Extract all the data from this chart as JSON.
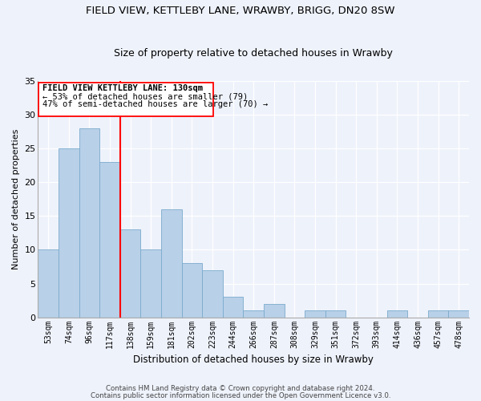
{
  "title": "FIELD VIEW, KETTLEBY LANE, WRAWBY, BRIGG, DN20 8SW",
  "subtitle": "Size of property relative to detached houses in Wrawby",
  "xlabel": "Distribution of detached houses by size in Wrawby",
  "ylabel": "Number of detached properties",
  "bar_labels": [
    "53sqm",
    "74sqm",
    "96sqm",
    "117sqm",
    "138sqm",
    "159sqm",
    "181sqm",
    "202sqm",
    "223sqm",
    "244sqm",
    "266sqm",
    "287sqm",
    "308sqm",
    "329sqm",
    "351sqm",
    "372sqm",
    "393sqm",
    "414sqm",
    "436sqm",
    "457sqm",
    "478sqm"
  ],
  "bar_values": [
    10,
    25,
    28,
    23,
    13,
    10,
    16,
    8,
    7,
    3,
    1,
    2,
    0,
    1,
    1,
    0,
    0,
    1,
    0,
    1,
    1
  ],
  "bar_color": "#b8d0e8",
  "bar_edge_color": "#7aabcc",
  "red_line_index": 3.5,
  "ylim": [
    0,
    35
  ],
  "yticks": [
    0,
    5,
    10,
    15,
    20,
    25,
    30,
    35
  ],
  "annotation_title": "FIELD VIEW KETTLEBY LANE: 130sqm",
  "annotation_line1": "← 53% of detached houses are smaller (79)",
  "annotation_line2": "47% of semi-detached houses are larger (70) →",
  "footer_line1": "Contains HM Land Registry data © Crown copyright and database right 2024.",
  "footer_line2": "Contains public sector information licensed under the Open Government Licence v3.0.",
  "background_color": "#eef2fb"
}
